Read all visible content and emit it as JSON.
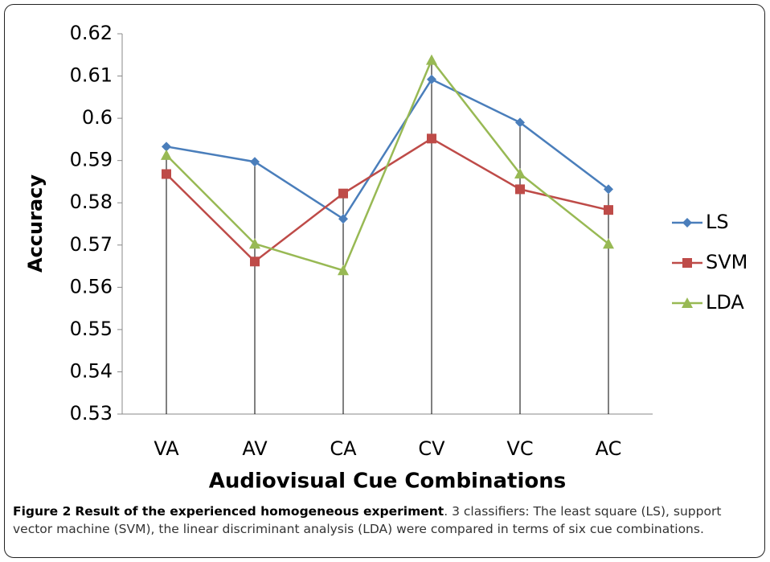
{
  "chart_data": {
    "type": "line",
    "y_label": "Accuracy",
    "x_label": "Audiovisual Cue Combinations",
    "categories": [
      "VA",
      "AV",
      "CA",
      "CV",
      "VC",
      "AC"
    ],
    "series": [
      {
        "name": "LS",
        "color": "#4a7ebb",
        "marker": "diamond",
        "values": [
          0.5933,
          0.5897,
          0.5762,
          0.6092,
          0.599,
          0.5832
        ]
      },
      {
        "name": "SVM",
        "color": "#be4b48",
        "marker": "square",
        "values": [
          0.5868,
          0.5661,
          0.5822,
          0.5952,
          0.5832,
          0.5783
        ]
      },
      {
        "name": "LDA",
        "color": "#98b954",
        "marker": "triangle",
        "values": [
          0.5913,
          0.5703,
          0.564,
          0.6138,
          0.5869,
          0.5703
        ]
      }
    ],
    "ylim": [
      0.53,
      0.62
    ],
    "yticks": [
      0.53,
      0.54,
      0.55,
      0.56,
      0.57,
      0.58,
      0.59,
      0.6,
      0.61,
      0.62
    ],
    "drop_lines": true,
    "legend": "right"
  },
  "caption": {
    "label": "Figure 2",
    "title": "Result of the experienced homogeneous experiment",
    "text": ". 3 classifiers: The least square (LS), support vector machine (SVM), the linear discriminant analysis (LDA) were compared in terms of six cue combinations."
  }
}
